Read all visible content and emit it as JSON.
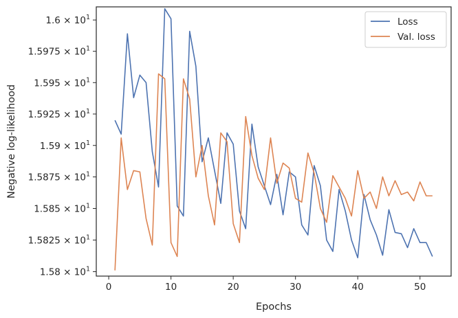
{
  "chart_data": {
    "type": "line",
    "title": "",
    "xlabel": "Epochs",
    "ylabel": "Negative log-likelihood",
    "y_scale": "log",
    "xlim": [
      -2,
      55
    ],
    "ylim": [
      15.7965,
      16.0105
    ],
    "grid": false,
    "legend_position": "top-right",
    "x_ticks": [
      0,
      10,
      20,
      30,
      40,
      50
    ],
    "y_ticks": [
      15.8,
      15.825,
      15.85,
      15.875,
      15.9,
      15.925,
      15.95,
      15.975,
      16.0
    ],
    "y_tick_labels": [
      {
        "mantissa": "1.58",
        "base": "10",
        "exp": "1"
      },
      {
        "mantissa": "1.5825",
        "base": "10",
        "exp": "1"
      },
      {
        "mantissa": "1.585",
        "base": "10",
        "exp": "1"
      },
      {
        "mantissa": "1.5875",
        "base": "10",
        "exp": "1"
      },
      {
        "mantissa": "1.59",
        "base": "10",
        "exp": "1"
      },
      {
        "mantissa": "1.5925",
        "base": "10",
        "exp": "1"
      },
      {
        "mantissa": "1.595",
        "base": "10",
        "exp": "1"
      },
      {
        "mantissa": "1.5975",
        "base": "10",
        "exp": "1"
      },
      {
        "mantissa": "1.6",
        "base": "10",
        "exp": "1"
      }
    ],
    "x": [
      1,
      2,
      3,
      4,
      5,
      6,
      7,
      8,
      9,
      10,
      11,
      12,
      13,
      14,
      15,
      16,
      17,
      18,
      19,
      20,
      21,
      22,
      23,
      24,
      25,
      26,
      27,
      28,
      29,
      30,
      31,
      32,
      33,
      34,
      35,
      36,
      37,
      38,
      39,
      40,
      41,
      42,
      43,
      44,
      45,
      46,
      47,
      48,
      49,
      50,
      51,
      52
    ],
    "series": [
      {
        "name": "Loss",
        "color": "#4c72b0",
        "values": [
          15.92,
          15.909,
          15.989,
          15.938,
          15.956,
          15.95,
          15.895,
          15.867,
          16.009,
          16.001,
          15.852,
          15.844,
          15.991,
          15.963,
          15.887,
          15.906,
          15.88,
          15.854,
          15.91,
          15.901,
          15.848,
          15.834,
          15.917,
          15.883,
          15.868,
          15.853,
          15.877,
          15.845,
          15.879,
          15.875,
          15.837,
          15.829,
          15.884,
          15.868,
          15.825,
          15.816,
          15.865,
          15.848,
          15.825,
          15.811,
          15.861,
          15.841,
          15.829,
          15.813,
          15.849,
          15.831,
          15.83,
          15.819,
          15.834,
          15.823,
          15.823,
          15.812
        ]
      },
      {
        "name": "Val. loss",
        "color": "#dd8452",
        "values": [
          15.801,
          15.906,
          15.865,
          15.88,
          15.879,
          15.842,
          15.821,
          15.957,
          15.953,
          15.823,
          15.812,
          15.953,
          15.937,
          15.875,
          15.9,
          15.86,
          15.837,
          15.91,
          15.903,
          15.838,
          15.823,
          15.923,
          15.892,
          15.874,
          15.865,
          15.906,
          15.87,
          15.886,
          15.882,
          15.858,
          15.855,
          15.894,
          15.878,
          15.85,
          15.839,
          15.876,
          15.867,
          15.858,
          15.844,
          15.88,
          15.858,
          15.863,
          15.85,
          15.875,
          15.86,
          15.872,
          15.861,
          15.863,
          15.856,
          15.871,
          15.86,
          15.86
        ]
      }
    ]
  }
}
